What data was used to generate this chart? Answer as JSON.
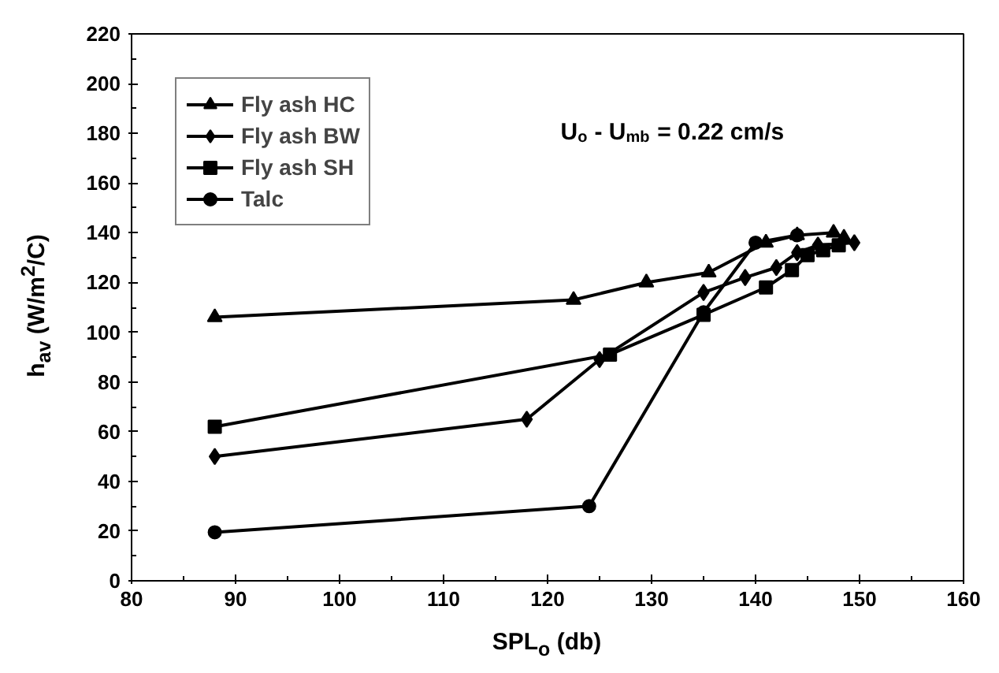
{
  "chart_data": {
    "type": "line",
    "xlabel": "SPL$_{o}$ (db)",
    "ylabel": "h$_{av}$ (W/m$^{2}$/C)",
    "annotations": [
      "U$_{o}$ - U$_{mb}$ = 0.22 cm/s"
    ],
    "series": [
      {
        "name": "Fly ash HC",
        "color": "#000000",
        "marker": "triangle",
        "x": [
          88,
          122.5,
          129.5,
          135.5,
          141,
          144,
          147.5,
          148.5
        ],
        "values": [
          106,
          113,
          120,
          124,
          136,
          139,
          140,
          138
        ]
      },
      {
        "name": "Fly ash BW",
        "color": "#000000",
        "marker": "diamond",
        "x": [
          88,
          118,
          125,
          135,
          139,
          142,
          144,
          146,
          149.5
        ],
        "values": [
          50,
          65,
          89,
          116,
          122,
          126,
          132,
          135,
          136
        ]
      },
      {
        "name": "Fly ash SH",
        "color": "#000000",
        "marker": "square",
        "x": [
          88,
          126,
          135,
          141,
          143.5,
          145,
          146.5,
          148
        ],
        "values": [
          62,
          91,
          107,
          118,
          125,
          131,
          133,
          135
        ]
      },
      {
        "name": "Talc",
        "color": "#000000",
        "marker": "circle",
        "x": [
          88,
          124,
          135,
          140,
          144
        ],
        "values": [
          19.5,
          30,
          108,
          136,
          139
        ]
      }
    ],
    "xlim": [
      80,
      160
    ],
    "xticks": [
      80,
      90,
      100,
      110,
      120,
      130,
      140,
      150,
      160
    ],
    "ylim": [
      0,
      220
    ],
    "yticks": [
      0,
      20,
      40,
      60,
      80,
      100,
      120,
      140,
      160,
      180,
      200,
      220
    ],
    "grid": false,
    "legend": "top left"
  }
}
